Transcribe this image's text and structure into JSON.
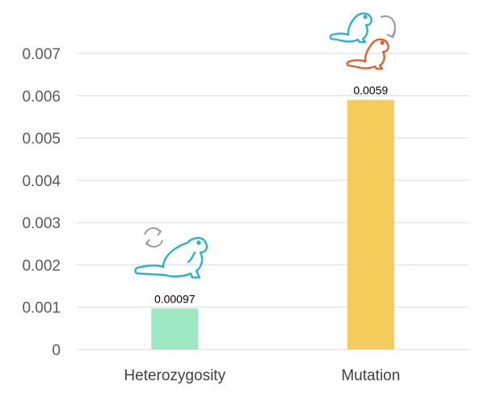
{
  "chart_data": {
    "type": "bar",
    "title": "",
    "xlabel": "",
    "ylabel": "",
    "categories": [
      "Heterozygosity",
      "Mutation"
    ],
    "values": [
      0.00097,
      0.0059
    ],
    "data_labels": [
      "0.00097",
      "0.0059"
    ],
    "bar_colors": [
      "#9fe8c4",
      "#f5cb5c"
    ],
    "ylim": [
      0,
      0.007
    ],
    "yticks": [
      0,
      0.001,
      0.002,
      0.003,
      0.004,
      0.005,
      0.006,
      0.007
    ],
    "ytick_labels": [
      "0",
      "0.001",
      "0.002",
      "0.003",
      "0.004",
      "0.005",
      "0.006",
      "0.007"
    ],
    "grid": true,
    "legend": "none"
  },
  "icons": {
    "heterozygosity": [
      "cycle-arrows-icon",
      "beaver-icon"
    ],
    "mutation": [
      "beaver-icon",
      "curved-arrow-icon",
      "beaver-icon"
    ]
  },
  "colors": {
    "grid": "#d9d9d9",
    "beaver_teal": "#2bb3c8",
    "beaver_orange": "#e2612a",
    "arrow_gray": "#9e9e9e"
  }
}
